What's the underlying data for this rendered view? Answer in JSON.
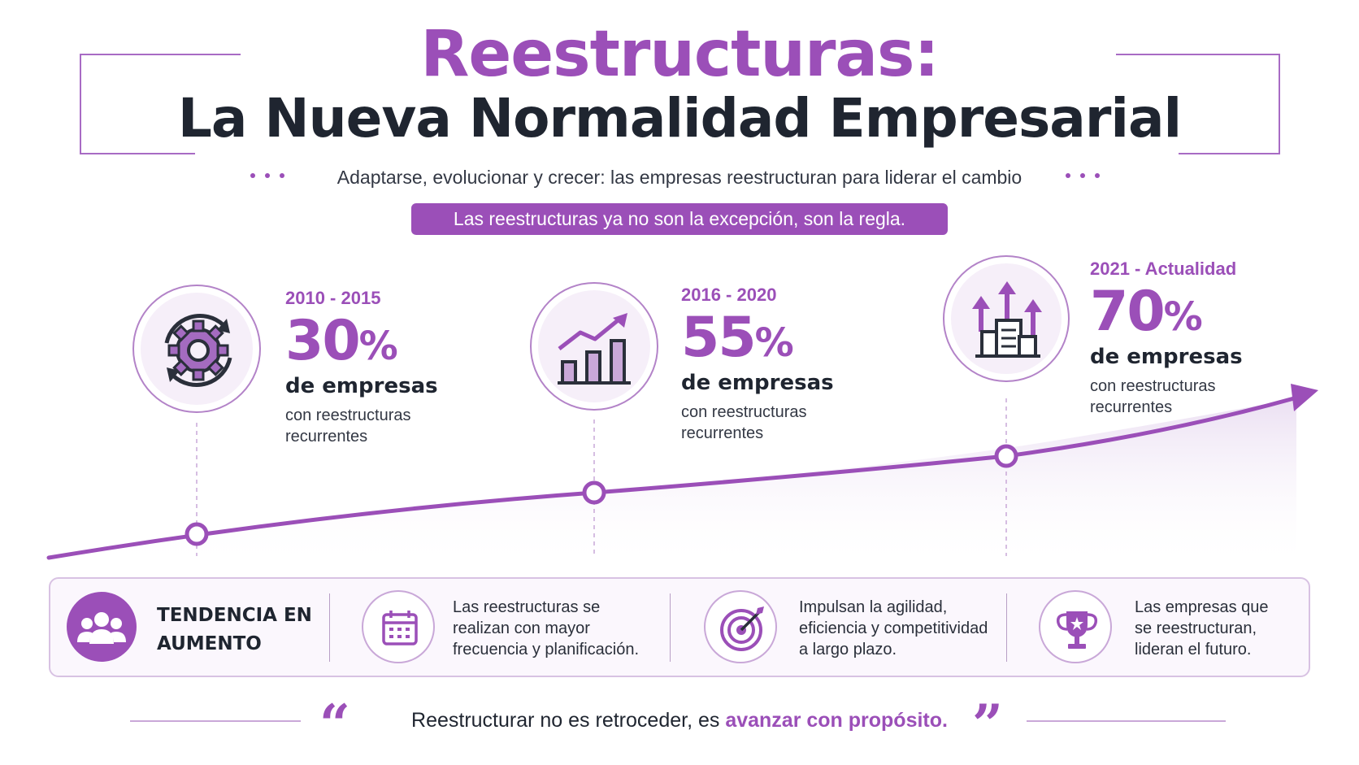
{
  "header": {
    "title_line1": "Reestructuras:",
    "title_line2": "La Nueva Normalidad Empresarial",
    "subtitle": "Adaptarse, evolucionar y crecer: las empresas reestructuran para liderar el cambio",
    "banner": "Las reestructuras ya no son la excepción, son la regla."
  },
  "colors": {
    "accent": "#9b4fb8",
    "dark": "#1f2530",
    "light_bg": "#f6eff9"
  },
  "milestones": [
    {
      "period": "2010 - 2015",
      "value": "30",
      "pct": "%",
      "unit": "de empresas",
      "desc": "con reestructuras recurrentes",
      "icon": "gear-cycle-icon"
    },
    {
      "period": "2016 - 2020",
      "value": "55",
      "pct": "%",
      "unit": "de empresas",
      "desc": "con reestructuras recurrentes",
      "icon": "growth-chart-icon"
    },
    {
      "period": "2021 - Actualidad",
      "value": "70",
      "pct": "%",
      "unit": "de empresas",
      "desc": "con reestructuras recurrentes",
      "icon": "building-arrows-icon"
    }
  ],
  "trend": {
    "label": "TENDENCIA EN AUMENTO",
    "icon": "people-group-icon"
  },
  "features": [
    {
      "text": "Las reestructuras se realizan con mayor frecuencia y planificación.",
      "icon": "calendar-icon"
    },
    {
      "text": "Impulsan la agilidad, eficiencia y competitividad a largo plazo.",
      "icon": "target-icon"
    },
    {
      "text": "Las empresas que se reestructuran, lideran el futuro.",
      "icon": "trophy-icon"
    }
  ],
  "quote": {
    "open": "“",
    "close": "”",
    "text": "Reestructurar no es retroceder, es ",
    "highlight": "avanzar con propósito."
  }
}
